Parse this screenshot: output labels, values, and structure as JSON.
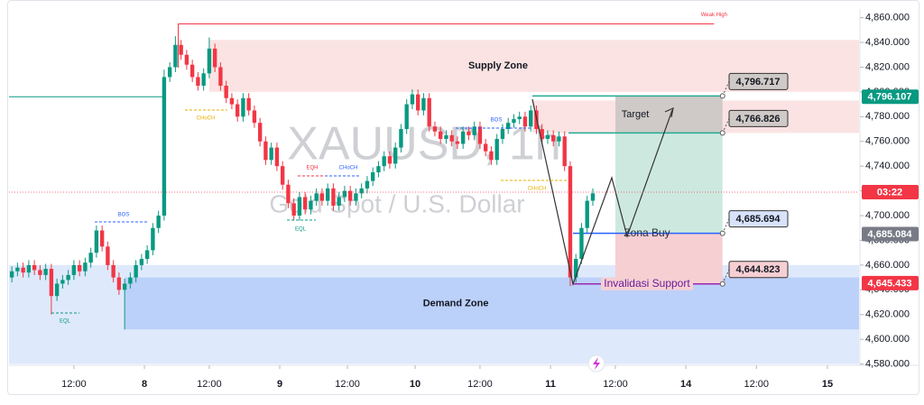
{
  "chart_data": {
    "type": "candlestick",
    "symbol_watermark": "XAUUSD, 1h",
    "description_watermark": "Gold Spot / U.S. Dollar",
    "up_color": "#089981",
    "down_color": "#f23645",
    "candles": [
      [
        4650,
        4659,
        4646,
        4655
      ],
      [
        4655,
        4662,
        4651,
        4658
      ],
      [
        4658,
        4662,
        4650,
        4654
      ],
      [
        4654,
        4664,
        4650,
        4660
      ],
      [
        4660,
        4664,
        4652,
        4656
      ],
      [
        4656,
        4660,
        4648,
        4652
      ],
      [
        4652,
        4661,
        4648,
        4657
      ],
      [
        4657,
        4661,
        4620,
        4635
      ],
      [
        4635,
        4649,
        4631,
        4645
      ],
      [
        4645,
        4652,
        4641,
        4648
      ],
      [
        4648,
        4656,
        4644,
        4652
      ],
      [
        4652,
        4664,
        4648,
        4660
      ],
      [
        4660,
        4664,
        4651,
        4655
      ],
      [
        4655,
        4666,
        4651,
        4662
      ],
      [
        4662,
        4674,
        4658,
        4670
      ],
      [
        4670,
        4692,
        4666,
        4688
      ],
      [
        4688,
        4692,
        4671,
        4675
      ],
      [
        4675,
        4679,
        4656,
        4660
      ],
      [
        4660,
        4664,
        4646,
        4650
      ],
      [
        4650,
        4654,
        4636,
        4640
      ],
      [
        4640,
        4649,
        4608,
        4645
      ],
      [
        4645,
        4654,
        4641,
        4650
      ],
      [
        4650,
        4664,
        4646,
        4660
      ],
      [
        4660,
        4669,
        4656,
        4665
      ],
      [
        4665,
        4676,
        4661,
        4672
      ],
      [
        4672,
        4694,
        4668,
        4690
      ],
      [
        4690,
        4704,
        4686,
        4700
      ],
      [
        4700,
        4818,
        4696,
        4812
      ],
      [
        4812,
        4824,
        4808,
        4820
      ],
      [
        4820,
        4845,
        4816,
        4838
      ],
      [
        4838,
        4842,
        4826,
        4830
      ],
      [
        4830,
        4834,
        4818,
        4822
      ],
      [
        4822,
        4826,
        4808,
        4812
      ],
      [
        4812,
        4816,
        4801,
        4805
      ],
      [
        4805,
        4819,
        4801,
        4815
      ],
      [
        4815,
        4844,
        4811,
        4835
      ],
      [
        4835,
        4839,
        4816,
        4820
      ],
      [
        4820,
        4824,
        4801,
        4805
      ],
      [
        4805,
        4809,
        4791,
        4795
      ],
      [
        4795,
        4799,
        4786,
        4790
      ],
      [
        4790,
        4794,
        4776,
        4780
      ],
      [
        4780,
        4799,
        4776,
        4795
      ],
      [
        4795,
        4799,
        4781,
        4785
      ],
      [
        4785,
        4789,
        4771,
        4775
      ],
      [
        4775,
        4779,
        4756,
        4760
      ],
      [
        4760,
        4764,
        4741,
        4745
      ],
      [
        4745,
        4759,
        4741,
        4755
      ],
      [
        4755,
        4759,
        4736,
        4740
      ],
      [
        4740,
        4744,
        4721,
        4725
      ],
      [
        4725,
        4729,
        4706,
        4710
      ],
      [
        4710,
        4714,
        4696,
        4700
      ],
      [
        4700,
        4719,
        4696,
        4715
      ],
      [
        4715,
        4719,
        4701,
        4705
      ],
      [
        4705,
        4716,
        4701,
        4712
      ],
      [
        4712,
        4722,
        4708,
        4718
      ],
      [
        4718,
        4722,
        4708,
        4712
      ],
      [
        4712,
        4726,
        4708,
        4722
      ],
      [
        4722,
        4726,
        4704,
        4708
      ],
      [
        4708,
        4719,
        4704,
        4715
      ],
      [
        4715,
        4724,
        4711,
        4720
      ],
      [
        4720,
        4724,
        4708,
        4712
      ],
      [
        4712,
        4722,
        4708,
        4718
      ],
      [
        4718,
        4726,
        4714,
        4722
      ],
      [
        4722,
        4732,
        4718,
        4728
      ],
      [
        4728,
        4739,
        4724,
        4735
      ],
      [
        4735,
        4744,
        4731,
        4740
      ],
      [
        4740,
        4752,
        4736,
        4748
      ],
      [
        4748,
        4752,
        4738,
        4742
      ],
      [
        4742,
        4759,
        4738,
        4755
      ],
      [
        4755,
        4774,
        4751,
        4770
      ],
      [
        4770,
        4794,
        4766,
        4790
      ],
      [
        4790,
        4802,
        4786,
        4798
      ],
      [
        4798,
        4802,
        4781,
        4785
      ],
      [
        4785,
        4799,
        4781,
        4795
      ],
      [
        4795,
        4799,
        4768,
        4772
      ],
      [
        4772,
        4776,
        4764,
        4768
      ],
      [
        4768,
        4772,
        4758,
        4762
      ],
      [
        4762,
        4769,
        4758,
        4765
      ],
      [
        4765,
        4769,
        4756,
        4760
      ],
      [
        4760,
        4764,
        4754,
        4758
      ],
      [
        4758,
        4772,
        4754,
        4768
      ],
      [
        4768,
        4772,
        4761,
        4765
      ],
      [
        4765,
        4776,
        4761,
        4772
      ],
      [
        4772,
        4776,
        4754,
        4758
      ],
      [
        4758,
        4762,
        4748,
        4752
      ],
      [
        4752,
        4756,
        4741,
        4745
      ],
      [
        4745,
        4766,
        4741,
        4762
      ],
      [
        4762,
        4774,
        4758,
        4770
      ],
      [
        4770,
        4779,
        4766,
        4775
      ],
      [
        4775,
        4782,
        4771,
        4778
      ],
      [
        4778,
        4784,
        4774,
        4780
      ],
      [
        4780,
        4784,
        4768,
        4772
      ],
      [
        4772,
        4789,
        4768,
        4785
      ],
      [
        4785,
        4789,
        4766,
        4770
      ],
      [
        4770,
        4774,
        4758,
        4762
      ],
      [
        4762,
        4769,
        4758,
        4765
      ],
      [
        4765,
        4769,
        4756,
        4760
      ],
      [
        4760,
        4768,
        4756,
        4764
      ],
      [
        4764,
        4768,
        4736,
        4740
      ],
      [
        4740,
        4744,
        4643,
        4650
      ],
      [
        4650,
        4669,
        4646,
        4665
      ],
      [
        4665,
        4694,
        4661,
        4690
      ],
      [
        4690,
        4716,
        4686,
        4712
      ],
      [
        4712,
        4722,
        4708,
        4718
      ]
    ],
    "xlim": [
      -0.5,
      150.2
    ],
    "xticks": [
      {
        "value": 11,
        "label": "12:00"
      },
      {
        "value": 23.5,
        "label": "8"
      },
      {
        "value": 35,
        "label": "12:00"
      },
      {
        "value": 47.5,
        "label": "9"
      },
      {
        "value": 59.5,
        "label": "12:00"
      },
      {
        "value": 71.5,
        "label": "10"
      },
      {
        "value": 83,
        "label": "12:00"
      },
      {
        "value": 95.5,
        "label": "11"
      },
      {
        "value": 107,
        "label": "12:00"
      },
      {
        "value": 119.5,
        "label": "14"
      },
      {
        "value": 132,
        "label": "12:00"
      },
      {
        "value": 144.6,
        "label": "15"
      }
    ],
    "ylim": [
      4579,
      4867
    ],
    "yticks": [
      {
        "value": 4580,
        "label": "4,580.000"
      },
      {
        "value": 4600,
        "label": "4,600.000"
      },
      {
        "value": 4620,
        "label": "4,620.000"
      },
      {
        "value": 4640,
        "label": "4,640.000"
      },
      {
        "value": 4660,
        "label": "4,660.000"
      },
      {
        "value": 4680,
        "label": "4,680.000"
      },
      {
        "value": 4700,
        "label": "4,700.000"
      },
      {
        "value": 4720,
        "label": "4,720.000"
      },
      {
        "value": 4740,
        "label": "4,740.000"
      },
      {
        "value": 4760,
        "label": "4,760.000"
      },
      {
        "value": 4780,
        "label": "4,780.000"
      },
      {
        "value": 4800,
        "label": "4,800.000"
      },
      {
        "value": 4820,
        "label": "4,820.000"
      },
      {
        "value": 4840,
        "label": "4,840.000"
      },
      {
        "value": 4860,
        "label": "4,860.000"
      }
    ],
    "zones": [
      {
        "x": [
          -0.5,
          150.2
        ],
        "y": [
          4580,
          4660
        ],
        "color": "#d6e4fb"
      },
      {
        "label": "Demand Zone",
        "x": [
          20,
          150.2
        ],
        "y": [
          4608,
          4650
        ],
        "color": "#b3cbf7"
      },
      {
        "label": "Supply Zone",
        "x": [
          35,
          150.2
        ],
        "y": [
          4800,
          4842
        ],
        "color": "#fadcdc"
      },
      {
        "x": [
          92.3,
          150.2
        ],
        "y": [
          4766.826,
          4793
        ],
        "color": "#fadcdc"
      }
    ],
    "weak_high": {
      "label": "Weak High",
      "value": 4855,
      "x": [
        29.5,
        124.5
      ],
      "color": "#f23645"
    },
    "level_line": {
      "value": 4796.107,
      "x": [
        -0.5,
        27
      ],
      "color": "#089981"
    },
    "position": {
      "x": [
        107,
        126
      ],
      "target_label": "Target",
      "entry_label": "Zona Buy",
      "stop_label": "Invalidasi Support",
      "target": {
        "value": 4796.717,
        "label": "4,796.717"
      },
      "take_profit": {
        "value": 4766.826,
        "label": "4,766.826"
      },
      "entry": {
        "value": 4685.694,
        "label": "4,685.694"
      },
      "stop": {
        "value": 4644.823,
        "label": "4,644.823"
      }
    },
    "axis_tags": [
      {
        "value": 4796.107,
        "label": "4,796.107",
        "color": "#089981"
      },
      {
        "value": 4719,
        "label": "03:22",
        "color": "#f23645"
      },
      {
        "value": 4685.084,
        "label": "4,685.084",
        "color": "#787b86"
      },
      {
        "value": 4645.433,
        "label": "4,645.433",
        "color": "#f23645"
      }
    ],
    "annotations": [
      "CHoCH",
      "EQL",
      "BOS",
      "EQH",
      "CHoCH",
      "EQL",
      "BOS",
      "CHoCH"
    ]
  }
}
